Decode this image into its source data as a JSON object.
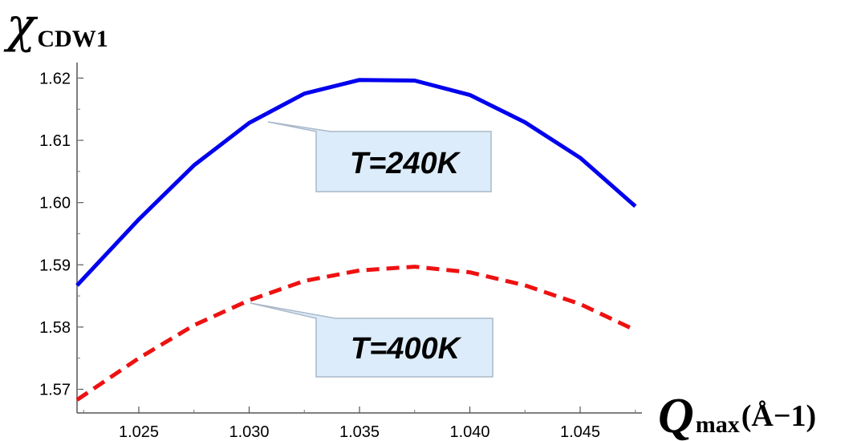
{
  "chart_data": {
    "type": "line",
    "x": [
      1.0222,
      1.025,
      1.0275,
      1.03,
      1.0325,
      1.035,
      1.0375,
      1.04,
      1.0425,
      1.045,
      1.0475
    ],
    "xlim": [
      1.0222,
      1.0478
    ],
    "ylim": [
      1.5662,
      1.6225
    ],
    "xticks": [
      1.025,
      1.03,
      1.035,
      1.04,
      1.045
    ],
    "xtick_labels": [
      "1.025",
      "1.030",
      "1.035",
      "1.040",
      "1.045"
    ],
    "yticks": [
      1.57,
      1.58,
      1.59,
      1.6,
      1.61,
      1.62
    ],
    "ytick_labels": [
      "1.57",
      "1.58",
      "1.59",
      "1.60",
      "1.61",
      "1.62"
    ],
    "ylabel": {
      "symbol": "χ",
      "subscript": "CDW1"
    },
    "xlabel": {
      "symbol": "Q",
      "subscript": "max",
      "unit": "(Å−1)"
    },
    "grid": false,
    "series": [
      {
        "name": "T=240K",
        "color": "#0000ee",
        "style": "solid",
        "values": [
          1.5867,
          1.5973,
          1.606,
          1.6128,
          1.6175,
          1.6197,
          1.6196,
          1.6173,
          1.6129,
          1.6072,
          1.5994
        ]
      },
      {
        "name": "T=400K",
        "color": "#ee1111",
        "style": "dashed",
        "values": [
          1.5683,
          1.575,
          1.5803,
          1.5843,
          1.5874,
          1.5891,
          1.5897,
          1.5888,
          1.5867,
          1.5837,
          1.5795
        ]
      }
    ]
  }
}
